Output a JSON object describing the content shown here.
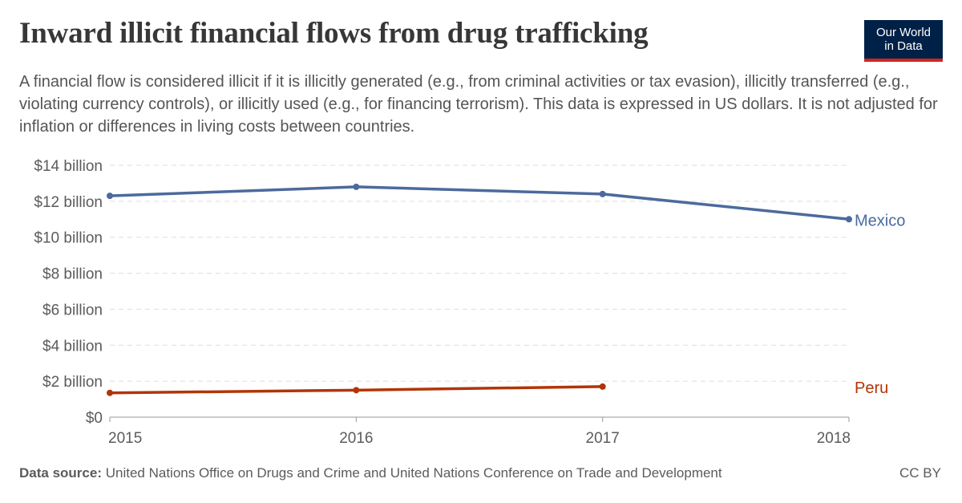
{
  "header": {
    "title": "Inward illicit financial flows from drug trafficking",
    "subtitle": "A financial flow is considered illicit if it is illicitly generated (e.g., from criminal activities or tax evasion), illicitly transferred (e.g., violating currency controls), or illicitly used (e.g., for financing terrorism). This data is expressed in US dollars. It is not adjusted for inflation or differences in living costs between countries."
  },
  "logo": {
    "line1": "Our World",
    "line2": "in Data"
  },
  "footer": {
    "source_label": "Data source:",
    "source_text": "United Nations Office on Drugs and Crime and United Nations Conference on Trade and Development",
    "license": "CC BY"
  },
  "chart_data": {
    "type": "line",
    "title": "Inward illicit financial flows from drug trafficking",
    "xlabel": "",
    "ylabel": "",
    "x": [
      2015,
      2016,
      2017,
      2018
    ],
    "xlim": [
      2015,
      2018
    ],
    "ylim": [
      0,
      14
    ],
    "yticks": [
      0,
      2,
      4,
      6,
      8,
      10,
      12,
      14
    ],
    "ytick_labels": [
      "$0",
      "$2 billion",
      "$4 billion",
      "$6 billion",
      "$8 billion",
      "$10 billion",
      "$12 billion",
      "$14 billion"
    ],
    "xtick_labels": [
      "2015",
      "2016",
      "2017",
      "2018"
    ],
    "grid": true,
    "legend": "inline-right",
    "series": [
      {
        "name": "Mexico",
        "color": "#4c6a9c",
        "x": [
          2015,
          2016,
          2017,
          2018
        ],
        "values": [
          12.3,
          12.8,
          12.4,
          11.0
        ]
      },
      {
        "name": "Peru",
        "color": "#b13507",
        "x": [
          2015,
          2016,
          2017
        ],
        "values": [
          1.35,
          1.5,
          1.7
        ]
      }
    ]
  }
}
